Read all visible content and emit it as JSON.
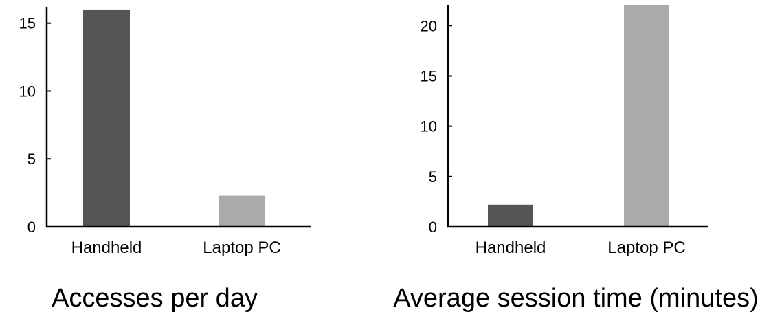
{
  "chart_data": [
    {
      "type": "bar",
      "title": "Accesses per day",
      "xlabel": "",
      "ylabel": "",
      "categories": [
        "Handheld",
        "Laptop PC"
      ],
      "values": [
        16,
        2.3
      ],
      "colors": [
        "#555555",
        "#aaaaaa"
      ],
      "ylim": [
        0,
        16.2
      ],
      "yticks": [
        0,
        5,
        10,
        15
      ],
      "grid": false,
      "legend": "none"
    },
    {
      "type": "bar",
      "title": "Average session time (minutes)",
      "xlabel": "",
      "ylabel": "",
      "categories": [
        "Handheld",
        "Laptop PC"
      ],
      "values": [
        2.2,
        22
      ],
      "colors": [
        "#555555",
        "#aaaaaa"
      ],
      "ylim": [
        0,
        22
      ],
      "yticks": [
        0,
        5,
        10,
        15,
        20
      ],
      "grid": false,
      "legend": "none"
    }
  ]
}
